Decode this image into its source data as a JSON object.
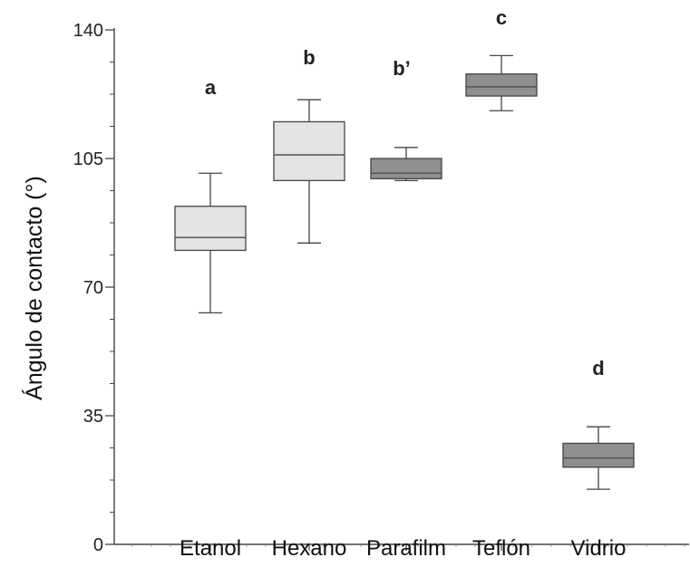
{
  "chart_data": {
    "type": "boxplot",
    "ylabel": "Ángulo de contacto (°)",
    "xlabel": "",
    "ylim": [
      0,
      140
    ],
    "yticks": [
      {
        "value": 0,
        "label": "0"
      },
      {
        "value": 35,
        "label": "35"
      },
      {
        "value": 70,
        "label": "70"
      },
      {
        "value": 105,
        "label": "105"
      },
      {
        "value": 140,
        "label": "140"
      }
    ],
    "y_minor_step": 8.75,
    "grid": false,
    "series": [
      {
        "category": "Etanol",
        "min": 63,
        "q1": 80,
        "median": 83.5,
        "q3": 92,
        "max": 101,
        "letter": "a",
        "fill": "#e3e3e3"
      },
      {
        "category": "Hexano",
        "min": 82,
        "q1": 99,
        "median": 106,
        "q3": 115,
        "max": 121,
        "letter": "b",
        "fill": "#e3e3e3"
      },
      {
        "category": "Parafilm",
        "min": 99,
        "q1": 99.5,
        "median": 101,
        "q3": 105,
        "max": 108,
        "letter": "b’",
        "fill": "#8f8f8f"
      },
      {
        "category": "Teflón",
        "min": 118,
        "q1": 122,
        "median": 124.5,
        "q3": 128,
        "max": 133,
        "letter": "c",
        "fill": "#8f8f8f"
      },
      {
        "category": "Vidrio",
        "min": 15,
        "q1": 21,
        "median": 23.5,
        "q3": 27.5,
        "max": 32,
        "letter": "d",
        "fill": "#8f8f8f"
      }
    ],
    "colors": {
      "axis": "#444444",
      "box_stroke": "#444444",
      "median": "#555555",
      "text": "#111111"
    }
  }
}
